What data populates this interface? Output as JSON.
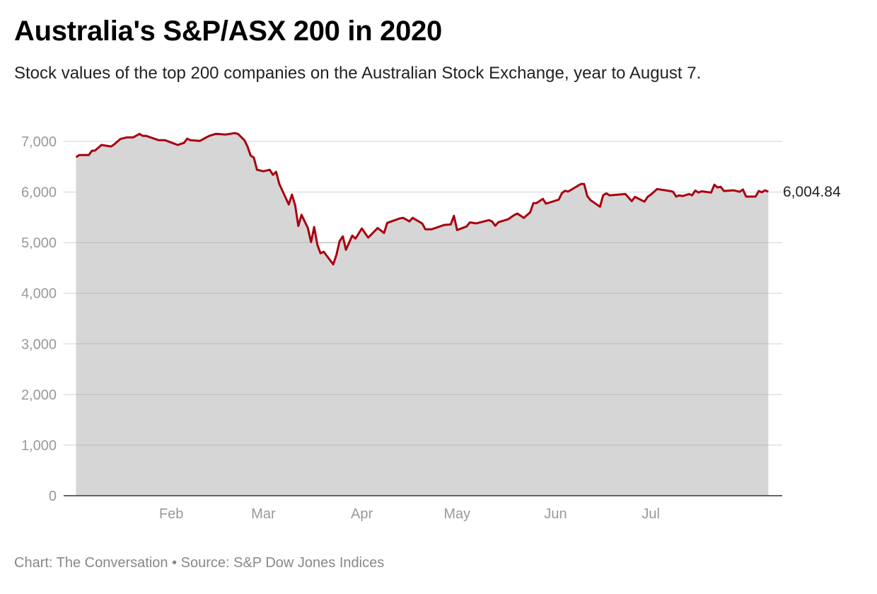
{
  "chart_data": {
    "type": "area",
    "title": "Australia's S&P/ASX 200 in 2020",
    "subtitle": "Stock values of the top 200 companies on the Australian Stock Exchange, year to August 7.",
    "footer": "Chart: The Conversation • Source: S&P Dow Jones Indices",
    "xlabel": "",
    "ylabel": "",
    "ylim": [
      0,
      7000
    ],
    "xlim": [
      "2020-01-01",
      "2020-08-07"
    ],
    "grid": true,
    "colors": {
      "line": "#a8000f",
      "area": "#d6d6d6",
      "grid": "#e0e0e0",
      "baseline": "#333333"
    },
    "y_ticks": [
      {
        "value": 0,
        "label": "0"
      },
      {
        "value": 1000,
        "label": "1,000"
      },
      {
        "value": 2000,
        "label": "2,000"
      },
      {
        "value": 3000,
        "label": "3,000"
      },
      {
        "value": 4000,
        "label": "4,000"
      },
      {
        "value": 5000,
        "label": "5,000"
      },
      {
        "value": 6000,
        "label": "6,000"
      },
      {
        "value": 7000,
        "label": "7,000"
      }
    ],
    "x_ticks": [
      {
        "date": "2020-02-01",
        "label": "Feb"
      },
      {
        "date": "2020-03-01",
        "label": "Mar"
      },
      {
        "date": "2020-04-01",
        "label": "Apr"
      },
      {
        "date": "2020-05-01",
        "label": "May"
      },
      {
        "date": "2020-06-01",
        "label": "Jun"
      },
      {
        "date": "2020-07-01",
        "label": "Jul"
      }
    ],
    "end_label": "6,004.84",
    "points": [
      [
        "2020-01-02",
        6690
      ],
      [
        "2020-01-03",
        6730
      ],
      [
        "2020-01-06",
        6730
      ],
      [
        "2020-01-07",
        6815
      ],
      [
        "2020-01-08",
        6820
      ],
      [
        "2020-01-10",
        6930
      ],
      [
        "2020-01-12",
        6910
      ],
      [
        "2020-01-13",
        6900
      ],
      [
        "2020-01-14",
        6940
      ],
      [
        "2020-01-16",
        7050
      ],
      [
        "2020-01-18",
        7080
      ],
      [
        "2020-01-20",
        7080
      ],
      [
        "2020-01-22",
        7150
      ],
      [
        "2020-01-23",
        7110
      ],
      [
        "2020-01-24",
        7110
      ],
      [
        "2020-01-28",
        7025
      ],
      [
        "2020-01-29",
        7025
      ],
      [
        "2020-01-30",
        7025
      ],
      [
        "2020-02-03",
        6930
      ],
      [
        "2020-02-05",
        6970
      ],
      [
        "2020-02-06",
        7055
      ],
      [
        "2020-02-07",
        7025
      ],
      [
        "2020-02-10",
        7010
      ],
      [
        "2020-02-12",
        7080
      ],
      [
        "2020-02-13",
        7110
      ],
      [
        "2020-02-15",
        7150
      ],
      [
        "2020-02-18",
        7135
      ],
      [
        "2020-02-21",
        7165
      ],
      [
        "2020-02-22",
        7150
      ],
      [
        "2020-02-24",
        7025
      ],
      [
        "2020-02-25",
        6900
      ],
      [
        "2020-02-26",
        6720
      ],
      [
        "2020-02-27",
        6680
      ],
      [
        "2020-02-28",
        6440
      ],
      [
        "2020-03-01",
        6410
      ],
      [
        "2020-03-03",
        6440
      ],
      [
        "2020-03-04",
        6340
      ],
      [
        "2020-03-05",
        6400
      ],
      [
        "2020-03-06",
        6160
      ],
      [
        "2020-03-09",
        5755
      ],
      [
        "2020-03-10",
        5950
      ],
      [
        "2020-03-11",
        5740
      ],
      [
        "2020-03-12",
        5330
      ],
      [
        "2020-03-13",
        5550
      ],
      [
        "2020-03-15",
        5290
      ],
      [
        "2020-03-16",
        5010
      ],
      [
        "2020-03-17",
        5310
      ],
      [
        "2020-03-18",
        4960
      ],
      [
        "2020-03-19",
        4790
      ],
      [
        "2020-03-20",
        4820
      ],
      [
        "2020-03-23",
        4570
      ],
      [
        "2020-03-24",
        4760
      ],
      [
        "2020-03-25",
        5030
      ],
      [
        "2020-03-26",
        5125
      ],
      [
        "2020-03-27",
        4860
      ],
      [
        "2020-03-29",
        5140
      ],
      [
        "2020-03-30",
        5080
      ],
      [
        "2020-04-01",
        5280
      ],
      [
        "2020-04-03",
        5100
      ],
      [
        "2020-04-06",
        5290
      ],
      [
        "2020-04-08",
        5190
      ],
      [
        "2020-04-09",
        5390
      ],
      [
        "2020-04-13",
        5480
      ],
      [
        "2020-04-14",
        5490
      ],
      [
        "2020-04-16",
        5420
      ],
      [
        "2020-04-17",
        5490
      ],
      [
        "2020-04-20",
        5380
      ],
      [
        "2020-04-21",
        5265
      ],
      [
        "2020-04-23",
        5265
      ],
      [
        "2020-04-27",
        5350
      ],
      [
        "2020-04-29",
        5360
      ],
      [
        "2020-04-30",
        5530
      ],
      [
        "2020-05-01",
        5250
      ],
      [
        "2020-05-04",
        5320
      ],
      [
        "2020-05-05",
        5400
      ],
      [
        "2020-05-07",
        5380
      ],
      [
        "2020-05-11",
        5445
      ],
      [
        "2020-05-12",
        5420
      ],
      [
        "2020-05-13",
        5335
      ],
      [
        "2020-05-14",
        5405
      ],
      [
        "2020-05-17",
        5460
      ],
      [
        "2020-05-19",
        5545
      ],
      [
        "2020-05-20",
        5575
      ],
      [
        "2020-05-22",
        5490
      ],
      [
        "2020-05-24",
        5600
      ],
      [
        "2020-05-25",
        5780
      ],
      [
        "2020-05-26",
        5780
      ],
      [
        "2020-05-28",
        5865
      ],
      [
        "2020-05-29",
        5770
      ],
      [
        "2020-06-02",
        5850
      ],
      [
        "2020-06-03",
        5980
      ],
      [
        "2020-06-04",
        6025
      ],
      [
        "2020-06-05",
        6010
      ],
      [
        "2020-06-09",
        6160
      ],
      [
        "2020-06-10",
        6160
      ],
      [
        "2020-06-11",
        5920
      ],
      [
        "2020-06-12",
        5840
      ],
      [
        "2020-06-15",
        5710
      ],
      [
        "2020-06-16",
        5935
      ],
      [
        "2020-06-17",
        5975
      ],
      [
        "2020-06-18",
        5935
      ],
      [
        "2020-06-23",
        5960
      ],
      [
        "2020-06-25",
        5820
      ],
      [
        "2020-06-26",
        5905
      ],
      [
        "2020-06-29",
        5810
      ],
      [
        "2020-06-30",
        5905
      ],
      [
        "2020-07-01",
        5950
      ],
      [
        "2020-07-03",
        6060
      ],
      [
        "2020-07-07",
        6020
      ],
      [
        "2020-07-08",
        6005
      ],
      [
        "2020-07-09",
        5910
      ],
      [
        "2020-07-10",
        5935
      ],
      [
        "2020-07-11",
        5920
      ],
      [
        "2020-07-13",
        5960
      ],
      [
        "2020-07-14",
        5935
      ],
      [
        "2020-07-15",
        6030
      ],
      [
        "2020-07-16",
        5990
      ],
      [
        "2020-07-17",
        6015
      ],
      [
        "2020-07-20",
        5990
      ],
      [
        "2020-07-21",
        6145
      ],
      [
        "2020-07-22",
        6090
      ],
      [
        "2020-07-23",
        6105
      ],
      [
        "2020-07-24",
        6020
      ],
      [
        "2020-07-27",
        6035
      ],
      [
        "2020-07-29",
        6005
      ],
      [
        "2020-07-30",
        6050
      ],
      [
        "2020-07-31",
        5910
      ],
      [
        "2020-08-03",
        5910
      ],
      [
        "2020-08-04",
        6020
      ],
      [
        "2020-08-05",
        5995
      ],
      [
        "2020-08-06",
        6035
      ],
      [
        "2020-08-07",
        6004.84
      ]
    ]
  }
}
